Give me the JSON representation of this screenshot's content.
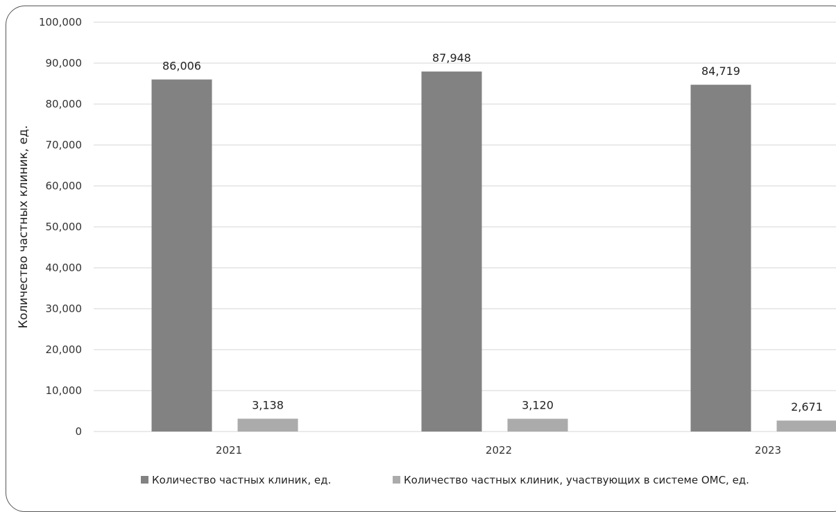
{
  "chart_data": {
    "type": "bar",
    "title": "",
    "xlabel": "",
    "ylabel": "Количество частных клиник, ед.",
    "ylim": [
      0,
      100000
    ],
    "yticks": [
      "0",
      "10,000",
      "20,000",
      "30,000",
      "40,000",
      "50,000",
      "60,000",
      "70,000",
      "80,000",
      "90,000",
      "100,000"
    ],
    "ytick_values": [
      0,
      10000,
      20000,
      30000,
      40000,
      50000,
      60000,
      70000,
      80000,
      90000,
      100000
    ],
    "categories": [
      "2021",
      "2022",
      "2023"
    ],
    "series": [
      {
        "name": "Количество частных клиник, ед.",
        "values": [
          86006,
          87948,
          84719
        ],
        "labels": [
          "86,006",
          "87,948",
          "84,719"
        ],
        "color": "#828282"
      },
      {
        "name": "Количество частных клиник, участвующих в системе ОМС, ед.",
        "values": [
          3138,
          3120,
          2671
        ],
        "labels": [
          "3,138",
          "3,120",
          "2,671"
        ],
        "color": "#ababab"
      }
    ],
    "grid": true,
    "legend_position": "bottom"
  }
}
